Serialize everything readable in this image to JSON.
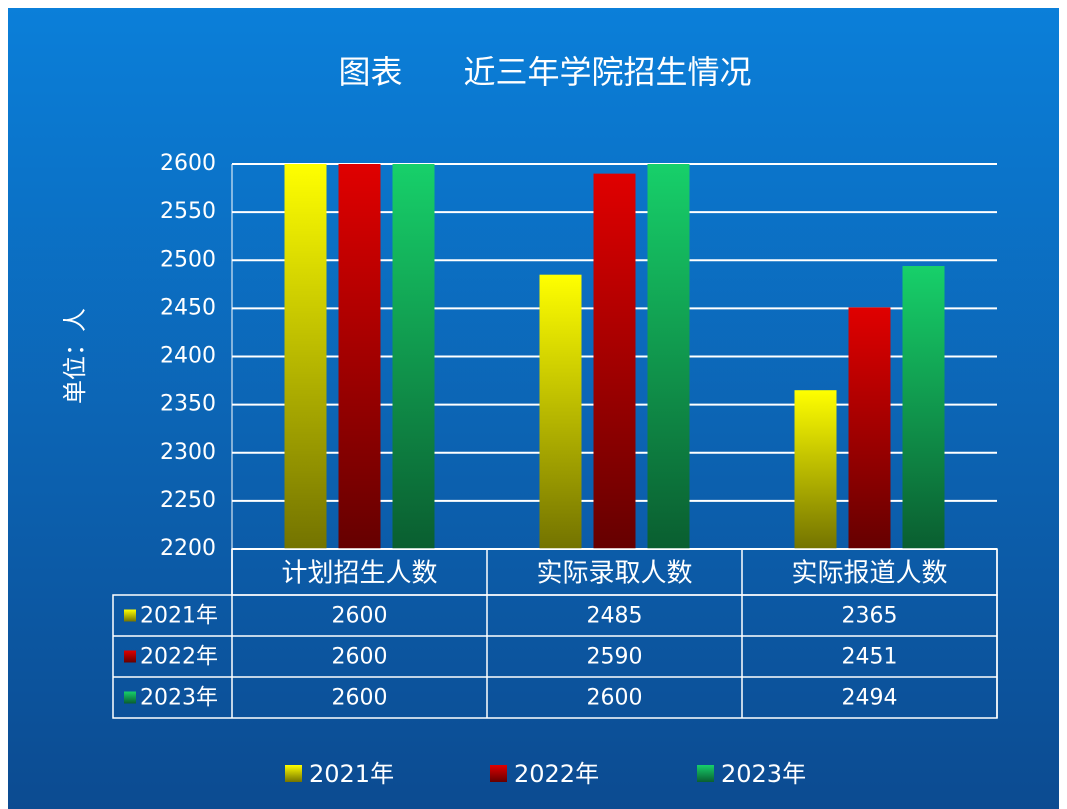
{
  "chart_data": {
    "type": "bar",
    "title": "图表      近三年学院招生情况",
    "y_label": "单位：人",
    "categories": [
      "计划招生人数",
      "实际录取人数",
      "实际报道人数"
    ],
    "series": [
      {
        "name": "2021年",
        "color": "#ffff00",
        "values": [
          2600,
          2485,
          2365
        ]
      },
      {
        "name": "2022年",
        "color": "#e00000",
        "values": [
          2600,
          2590,
          2451
        ]
      },
      {
        "name": "2023年",
        "color": "#17d06a",
        "values": [
          2600,
          2600,
          2494
        ]
      }
    ],
    "ylim": [
      2200,
      2600
    ],
    "yticks": [
      2200,
      2250,
      2300,
      2350,
      2400,
      2450,
      2500,
      2550,
      2600
    ],
    "grid": true,
    "legend": "bottom",
    "data_table": true
  }
}
